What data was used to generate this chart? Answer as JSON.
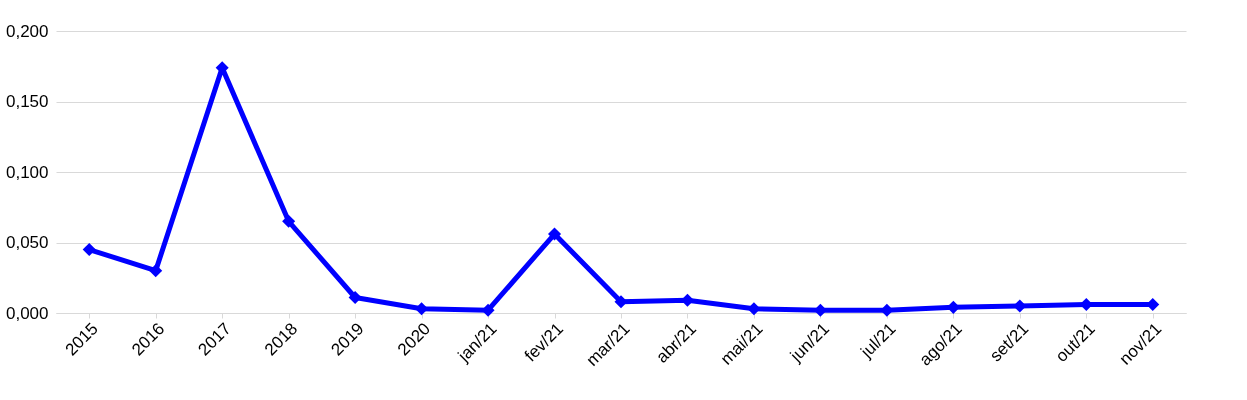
{
  "chart_data": {
    "type": "line",
    "categories": [
      "2015",
      "2016",
      "2017",
      "2018",
      "2019",
      "2020",
      "jan/21",
      "fev/21",
      "mar/21",
      "abr/21",
      "mai/21",
      "jun/21",
      "jul/21",
      "ago/21",
      "set/21",
      "out/21",
      "nov/21"
    ],
    "series": [
      {
        "color": "#0000ff",
        "values": [
          0.045,
          0.03,
          0.174,
          0.065,
          0.011,
          0.003,
          0.002,
          0.056,
          0.008,
          0.009,
          0.003,
          0.002,
          0.002,
          0.004,
          0.005,
          0.006,
          0.006
        ]
      }
    ],
    "ylim": [
      0,
      0.2
    ],
    "yticks": [
      {
        "value": 0,
        "label": "0,000"
      },
      {
        "value": 0.05,
        "label": "0,050"
      },
      {
        "value": 0.1,
        "label": "0,100"
      },
      {
        "value": 0.15,
        "label": "0,150"
      },
      {
        "value": 0.2,
        "label": "0,200"
      }
    ],
    "grid": "y",
    "marker": "diamond",
    "line_style": "solid"
  }
}
